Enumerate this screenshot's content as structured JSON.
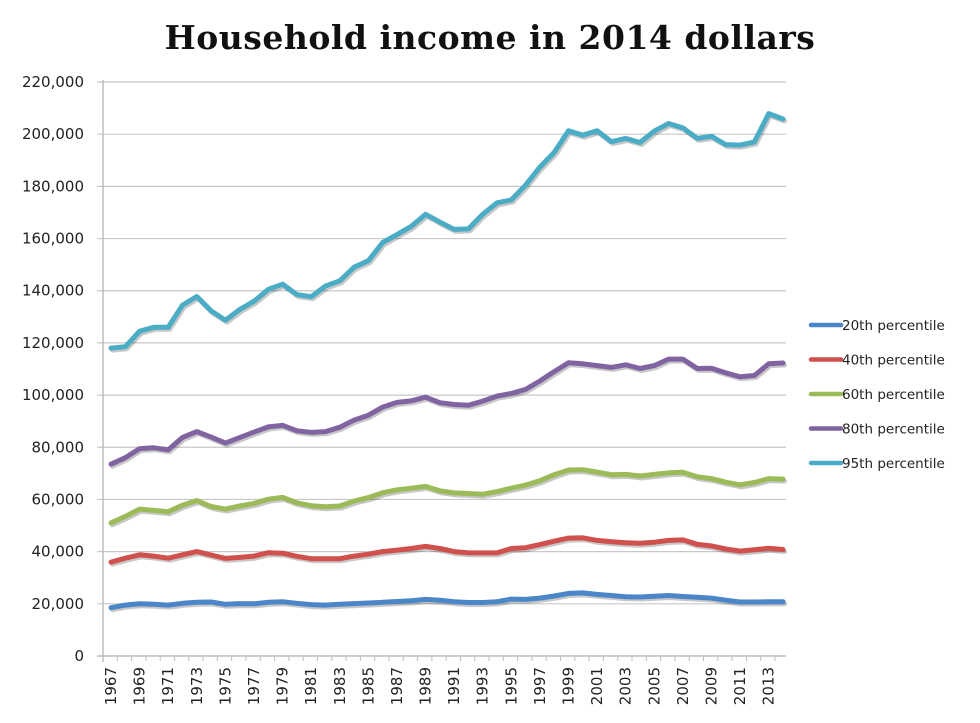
{
  "chart_data": {
    "type": "line",
    "title": "Household income in 2014 dollars",
    "xlabel": "",
    "ylabel": "",
    "ylim": [
      0,
      220000
    ],
    "yticks": [
      0,
      20000,
      40000,
      60000,
      80000,
      100000,
      120000,
      140000,
      160000,
      180000,
      200000,
      220000
    ],
    "ytick_labels": [
      "0",
      "20,000",
      "40,000",
      "60,000",
      "80,000",
      "100,000",
      "120,000",
      "140,000",
      "160,000",
      "180,000",
      "200,000",
      "220,000"
    ],
    "xtick_labels": [
      "1967",
      "1969",
      "1971",
      "1973",
      "1975",
      "1977",
      "1979",
      "1981",
      "1983",
      "1985",
      "1987",
      "1989",
      "1991",
      "1993",
      "1995",
      "1997",
      "1999",
      "2001",
      "2003",
      "2005",
      "2007",
      "2009",
      "2011",
      "2013"
    ],
    "grid": true,
    "legend_position": "right",
    "x": [
      1967,
      1968,
      1969,
      1970,
      1971,
      1972,
      1973,
      1974,
      1975,
      1976,
      1977,
      1978,
      1979,
      1980,
      1981,
      1982,
      1983,
      1984,
      1985,
      1986,
      1987,
      1988,
      1989,
      1990,
      1991,
      1992,
      1993,
      1994,
      1995,
      1996,
      1997,
      1998,
      1999,
      2000,
      2001,
      2002,
      2003,
      2004,
      2005,
      2006,
      2007,
      2008,
      2009,
      2010,
      2011,
      2012,
      2013,
      2014
    ],
    "series": [
      {
        "name": "20th percentile",
        "color": "#4a86c8",
        "values": [
          18500,
          19500,
          20000,
          19800,
          19500,
          20200,
          20600,
          20700,
          19800,
          20100,
          20000,
          20600,
          20800,
          20200,
          19700,
          19500,
          19800,
          20100,
          20300,
          20600,
          20900,
          21200,
          21700,
          21400,
          20800,
          20500,
          20500,
          20800,
          21800,
          21700,
          22200,
          23000,
          24000,
          24200,
          23600,
          23200,
          22700,
          22600,
          22900,
          23200,
          22800,
          22500,
          22200,
          21400,
          20700,
          20700,
          20800,
          20800
        ]
      },
      {
        "name": "40th percentile",
        "color": "#d0504d",
        "values": [
          36000,
          37500,
          38800,
          38300,
          37500,
          38800,
          40000,
          38700,
          37400,
          37800,
          38300,
          39600,
          39400,
          38200,
          37300,
          37300,
          37300,
          38300,
          39000,
          40000,
          40600,
          41200,
          42000,
          41200,
          40000,
          39500,
          39500,
          39500,
          41200,
          41500,
          42700,
          44000,
          45200,
          45300,
          44300,
          43800,
          43400,
          43200,
          43600,
          44300,
          44500,
          42800,
          42200,
          41000,
          40200,
          40700,
          41300,
          40800
        ]
      },
      {
        "name": "60th percentile",
        "color": "#9bbb59",
        "values": [
          51000,
          53500,
          56300,
          55800,
          55300,
          57800,
          59600,
          57300,
          56300,
          57500,
          58500,
          60100,
          60800,
          58700,
          57600,
          57200,
          57500,
          59400,
          60700,
          62600,
          63700,
          64300,
          65000,
          63300,
          62500,
          62300,
          62000,
          63000,
          64300,
          65500,
          67200,
          69500,
          71300,
          71400,
          70500,
          69500,
          69600,
          69000,
          69600,
          70200,
          70400,
          68700,
          68000,
          66600,
          65600,
          66500,
          68000,
          67800
        ]
      },
      {
        "name": "80th percentile",
        "color": "#8064a2",
        "values": [
          73500,
          76000,
          79500,
          79800,
          79000,
          83800,
          86000,
          83900,
          81600,
          83700,
          85800,
          87800,
          88400,
          86300,
          85700,
          86000,
          87700,
          90400,
          92300,
          95400,
          97200,
          97800,
          99200,
          97100,
          96400,
          96100,
          97700,
          99600,
          100600,
          102200,
          105400,
          109000,
          112400,
          112000,
          111300,
          110600,
          111600,
          110200,
          111300,
          113800,
          113800,
          110200,
          110300,
          108500,
          107000,
          107500,
          112000,
          112300
        ]
      },
      {
        "name": "95th percentile",
        "color": "#4bacc6",
        "values": [
          118000,
          118500,
          124500,
          126000,
          126000,
          134500,
          137800,
          132300,
          128700,
          132800,
          136000,
          140500,
          142500,
          138500,
          137700,
          141800,
          143800,
          149000,
          151500,
          158500,
          161500,
          164700,
          169300,
          166300,
          163500,
          163700,
          169300,
          173700,
          174800,
          180500,
          187400,
          193000,
          201300,
          199600,
          201300,
          197100,
          198400,
          196800,
          201200,
          204100,
          202400,
          198400,
          199200,
          196000,
          195800,
          197000,
          207900,
          205800
        ]
      }
    ]
  }
}
